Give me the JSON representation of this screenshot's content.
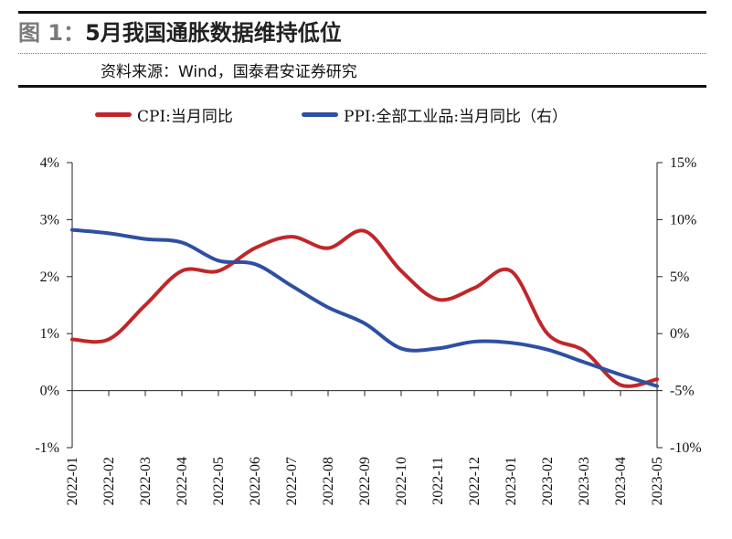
{
  "figure": {
    "label": "图 1：",
    "title": "5月我国通胀数据维持低位",
    "source": "资料来源：Wind，国泰君安证券研究"
  },
  "legend": [
    {
      "name": "CPI:当月同比",
      "color": "#c0262a"
    },
    {
      "name": "PPI:全部工业品:当月同比（右）",
      "color": "#2e4fa3"
    }
  ],
  "chart_data": {
    "type": "line",
    "categories": [
      "2022-01",
      "2022-02",
      "2022-03",
      "2022-04",
      "2022-05",
      "2022-06",
      "2022-07",
      "2022-08",
      "2022-09",
      "2022-10",
      "2022-11",
      "2022-12",
      "2023-01",
      "2023-02",
      "2023-03",
      "2023-04",
      "2023-05"
    ],
    "left_axis": {
      "ticks": [
        "4%",
        "3%",
        "2%",
        "1%",
        "0%",
        "-1%"
      ],
      "range": [
        -1,
        4
      ]
    },
    "right_axis": {
      "ticks": [
        "15%",
        "10%",
        "5%",
        "0%",
        "-5%",
        "-10%"
      ],
      "range": [
        -10,
        15
      ]
    },
    "series": [
      {
        "name": "CPI:当月同比",
        "axis": "left",
        "color": "#c0262a",
        "values": [
          0.9,
          0.9,
          1.5,
          2.1,
          2.1,
          2.5,
          2.7,
          2.5,
          2.8,
          2.1,
          1.6,
          1.8,
          2.1,
          1.0,
          0.7,
          0.1,
          0.2
        ]
      },
      {
        "name": "PPI:全部工业品:当月同比（右）",
        "axis": "right",
        "color": "#2e4fa3",
        "values": [
          9.1,
          8.8,
          8.3,
          8.0,
          6.4,
          6.1,
          4.2,
          2.3,
          0.9,
          -1.3,
          -1.3,
          -0.7,
          -0.8,
          -1.4,
          -2.5,
          -3.6,
          -4.6
        ]
      }
    ],
    "grid": false,
    "legend_position": "top"
  }
}
